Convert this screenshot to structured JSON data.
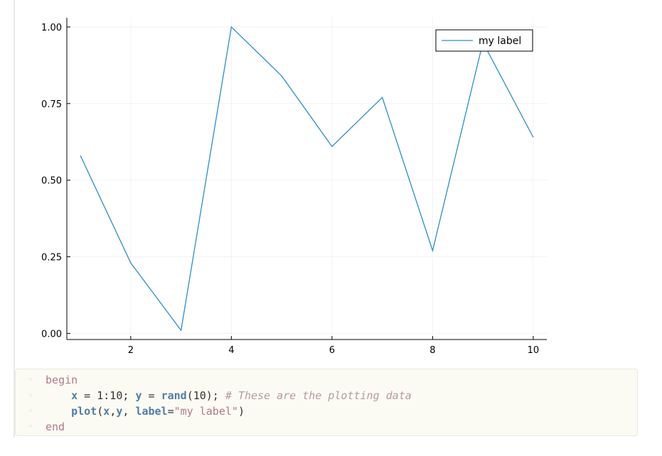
{
  "chart_data": {
    "type": "line",
    "x": [
      1,
      2,
      3,
      4,
      5,
      6,
      7,
      8,
      9,
      10
    ],
    "series": [
      {
        "name": "my label",
        "values": [
          0.58,
          0.23,
          0.01,
          1.0,
          0.84,
          0.61,
          0.77,
          0.27,
          0.95,
          0.64
        ],
        "color": "#2a8fc4"
      }
    ],
    "xlim": [
      0.73,
      10.27
    ],
    "ylim": [
      -0.02,
      1.03
    ],
    "x_ticks": [
      2,
      4,
      6,
      8,
      10
    ],
    "x_tick_labels": [
      "2",
      "4",
      "6",
      "8",
      "10"
    ],
    "y_ticks": [
      0,
      0.25,
      0.5,
      0.75,
      1.0
    ],
    "y_tick_labels": [
      "0.00",
      "0.25",
      "0.50",
      "0.75",
      "1.00"
    ],
    "grid": true,
    "legend_position": "top-right",
    "title": "",
    "xlabel": "",
    "ylabel": ""
  },
  "code": {
    "begin_kw": "begin",
    "line2": {
      "x_var": "x",
      "assign1": " = 1:10; ",
      "y_var": "y",
      "assign2": " = ",
      "rand_fn": "rand",
      "rand_args": "(10); ",
      "comment": "# These are the plotting data"
    },
    "line3": {
      "plot_fn": "plot",
      "open": "(",
      "arg_x": "x",
      "comma1": ",",
      "arg_y": "y",
      "comma2": ", ",
      "label_kw": "label",
      "eq": "=",
      "label_str": "\"my label\"",
      "close": ")"
    },
    "end_kw": "end",
    "gutter_symbol": "◦"
  }
}
